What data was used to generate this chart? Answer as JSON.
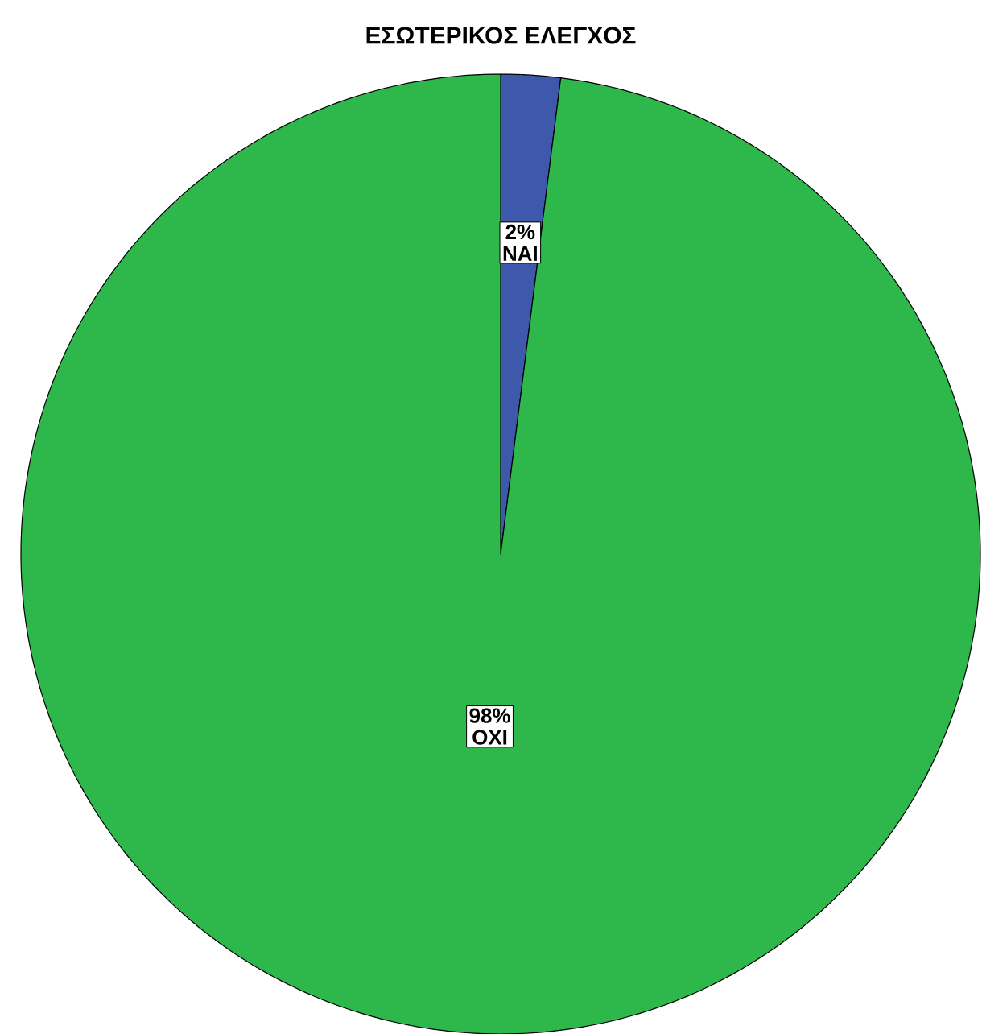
{
  "chart_data": {
    "type": "pie",
    "title": "ΕΣΩΤΕΡΙΚΟΣ ΕΛΕΓΧΟΣ",
    "categories": [
      "ΝΑΙ",
      "ΟΧΙ"
    ],
    "values": [
      2,
      98
    ],
    "value_labels": [
      "2%",
      "98%"
    ],
    "colors": [
      "#3e58ac",
      "#2eb84b"
    ]
  }
}
